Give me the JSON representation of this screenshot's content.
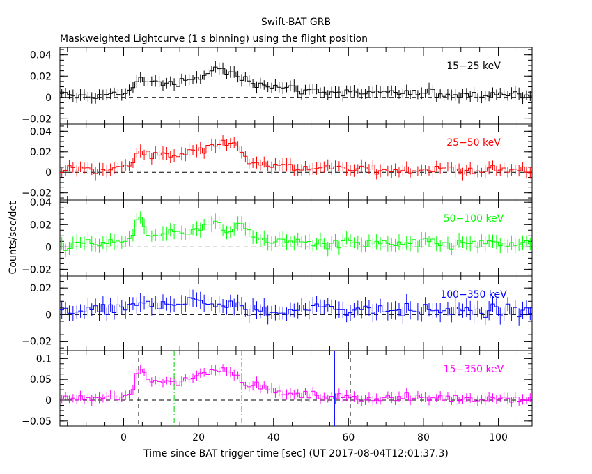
{
  "chart_data": {
    "type": "line",
    "title": "Swift-BAT GRB",
    "subtitle": "Maskweighted Lightcurve (1 s binning) using the flight position",
    "xlabel": "Time since BAT trigger time [sec] (UT 2017-08-04T12:01:37.3)",
    "ylabel": "Counts/sec/det",
    "xlim": [
      -17,
      109
    ],
    "xticks": [
      0,
      20,
      40,
      60,
      80,
      100
    ],
    "xtick_labels": [
      "0",
      "20",
      "40",
      "60",
      "80",
      "100"
    ],
    "markers": [
      {
        "x": 4,
        "style": "dashed",
        "color": "#000000"
      },
      {
        "x": 13.5,
        "style": "dashdot",
        "color": "#00cc00"
      },
      {
        "x": 31.5,
        "style": "dashdot",
        "color": "#00cc00"
      },
      {
        "x": 56.3,
        "style": "solid",
        "color": "#0000ff"
      },
      {
        "x": 60.5,
        "style": "dashed",
        "color": "#000000"
      }
    ],
    "panels": [
      {
        "name": "15-25 keV",
        "label": "15−25 keV",
        "color": "#000000",
        "ylim": [
          -0.025,
          0.047
        ],
        "yticks": [
          -0.02,
          0,
          0.02,
          0.04
        ],
        "ytick_labels": [
          "−0.02",
          "0",
          "0.02",
          "0.04"
        ],
        "err": 0.005,
        "knots": [
          [
            -17,
            0.001
          ],
          [
            -5,
            0.002
          ],
          [
            2,
            0.004
          ],
          [
            3,
            0.018
          ],
          [
            8,
            0.015
          ],
          [
            14,
            0.012
          ],
          [
            20,
            0.018
          ],
          [
            25,
            0.028
          ],
          [
            29,
            0.022
          ],
          [
            33,
            0.016
          ],
          [
            45,
            0.008
          ],
          [
            60,
            0.004
          ],
          [
            109,
            0.003
          ]
        ]
      },
      {
        "name": "25-50 keV",
        "label": "25−50 keV",
        "color": "#ff0000",
        "ylim": [
          -0.027,
          0.047
        ],
        "yticks": [
          -0.02,
          0,
          0.02,
          0.04
        ],
        "ytick_labels": [
          "−0.02",
          "0",
          "0.02",
          "0.04"
        ],
        "err": 0.0055,
        "knots": [
          [
            -17,
            0.002
          ],
          [
            -5,
            0.003
          ],
          [
            2,
            0.006
          ],
          [
            4,
            0.02
          ],
          [
            10,
            0.018
          ],
          [
            14,
            0.016
          ],
          [
            20,
            0.023
          ],
          [
            26,
            0.03
          ],
          [
            30,
            0.026
          ],
          [
            33,
            0.012
          ],
          [
            45,
            0.005
          ],
          [
            60,
            0.003
          ],
          [
            109,
            0.002
          ]
        ]
      },
      {
        "name": "50-100 keV",
        "label": "50−100 keV",
        "color": "#00ff00",
        "ylim": [
          -0.026,
          0.042
        ],
        "yticks": [
          -0.02,
          0,
          0.02,
          0.04
        ],
        "ytick_labels": [
          "−0.02",
          "0",
          "0.02",
          "0.04"
        ],
        "err": 0.006,
        "knots": [
          [
            -17,
            0.002
          ],
          [
            -5,
            0.003
          ],
          [
            2,
            0.008
          ],
          [
            4,
            0.028
          ],
          [
            7,
            0.01
          ],
          [
            13,
            0.012
          ],
          [
            20,
            0.018
          ],
          [
            25,
            0.02
          ],
          [
            28,
            0.014
          ],
          [
            31,
            0.02
          ],
          [
            35,
            0.008
          ],
          [
            45,
            0.004
          ],
          [
            60,
            0.003
          ],
          [
            109,
            0.002
          ]
        ]
      },
      {
        "name": "100-350 keV",
        "label": "100−350 keV",
        "color": "#0000ff",
        "ylim": [
          -0.027,
          0.029
        ],
        "yticks": [
          -0.02,
          0,
          0.02
        ],
        "ytick_labels": [
          "−0.02",
          "0",
          "0.02"
        ],
        "err": 0.006,
        "knots": [
          [
            -17,
            0.002
          ],
          [
            0,
            0.003
          ],
          [
            5,
            0.008
          ],
          [
            18,
            0.01
          ],
          [
            25,
            0.008
          ],
          [
            32,
            0.004
          ],
          [
            40,
            0.002
          ],
          [
            55,
            0.006
          ],
          [
            60,
            0.004
          ],
          [
            109,
            0.002
          ]
        ]
      },
      {
        "name": "15-350 keV",
        "label": "15−350 keV",
        "color": "#ff00ff",
        "ylim": [
          -0.062,
          0.119
        ],
        "yticks": [
          -0.05,
          0,
          0.05,
          0.1
        ],
        "ytick_labels": [
          "−0.05",
          "0",
          "0.05",
          "0.1"
        ],
        "err": 0.011,
        "knots": [
          [
            -17,
            0.002
          ],
          [
            -5,
            0.005
          ],
          [
            2,
            0.008
          ],
          [
            4,
            0.08
          ],
          [
            7,
            0.05
          ],
          [
            13,
            0.04
          ],
          [
            20,
            0.06
          ],
          [
            26,
            0.08
          ],
          [
            30,
            0.06
          ],
          [
            33,
            0.04
          ],
          [
            45,
            0.012
          ],
          [
            60,
            0.006
          ],
          [
            109,
            0.004
          ]
        ]
      }
    ]
  }
}
